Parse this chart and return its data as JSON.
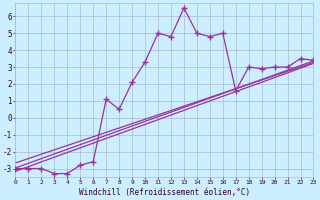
{
  "xlabel": "Windchill (Refroidissement éolien,°C)",
  "bg_color": "#cceeff",
  "line_color": "#993399",
  "grid_color": "#aabbcc",
  "x_ticks": [
    0,
    1,
    2,
    3,
    4,
    5,
    6,
    7,
    8,
    9,
    10,
    11,
    12,
    13,
    14,
    15,
    16,
    17,
    18,
    19,
    20,
    21,
    22,
    23
  ],
  "y_ticks": [
    -3,
    -2,
    -1,
    0,
    1,
    2,
    3,
    4,
    5,
    6
  ],
  "xlim": [
    0,
    23
  ],
  "ylim": [
    -3.5,
    6.8
  ],
  "main_x": [
    0,
    1,
    2,
    3,
    4,
    5,
    6,
    7,
    8,
    9,
    10,
    11,
    12,
    13,
    14,
    15,
    16,
    17,
    18,
    19,
    20,
    21,
    22,
    23
  ],
  "main_y": [
    -3.0,
    -3.0,
    -3.0,
    -3.3,
    -3.3,
    -2.8,
    -2.6,
    1.1,
    0.5,
    2.1,
    3.3,
    5.0,
    4.8,
    6.5,
    5.0,
    4.8,
    5.0,
    1.6,
    3.0,
    2.9,
    3.0,
    3.0,
    3.5,
    3.4
  ],
  "line1_x": [
    0,
    23
  ],
  "line1_y": [
    -3.0,
    3.4
  ],
  "line2_x": [
    0,
    23
  ],
  "line2_y": [
    -3.0,
    3.5
  ],
  "line3_x": [
    0,
    23
  ],
  "line3_y": [
    -3.0,
    3.3
  ]
}
